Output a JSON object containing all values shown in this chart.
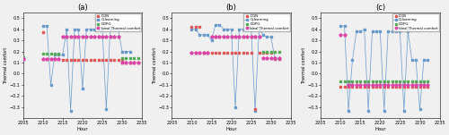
{
  "hours": [
    2205,
    2206,
    2207,
    2208,
    2209,
    2210,
    2211,
    2212,
    2213,
    2214,
    2215,
    2216,
    2217,
    2218,
    2219,
    2220,
    2221,
    2222,
    2223,
    2224,
    2225,
    2226,
    2227,
    2228,
    2229,
    2230,
    2231,
    2232,
    2233,
    2234,
    2235
  ],
  "subplot_a": {
    "title": "(a)",
    "DQN_x": [
      2205,
      2210,
      2211,
      2212,
      2213,
      2214,
      2215,
      2216,
      2217,
      2218,
      2219,
      2220,
      2221,
      2222,
      2223,
      2224,
      2225,
      2226,
      2227,
      2228,
      2229,
      2230,
      2231,
      2232,
      2233,
      2234
    ],
    "DQN_y": [
      0.13,
      0.37,
      0.13,
      0.13,
      0.13,
      0.13,
      0.12,
      0.12,
      0.12,
      0.12,
      0.12,
      0.12,
      0.12,
      0.12,
      0.12,
      0.12,
      0.12,
      0.12,
      0.12,
      0.12,
      0.12,
      0.12,
      0.1,
      0.1,
      0.1,
      0.1
    ],
    "Qlearning_x": [
      2210,
      2211,
      2212,
      2213,
      2214,
      2215,
      2216,
      2217,
      2218,
      2219,
      2220,
      2221,
      2222,
      2223,
      2224,
      2225,
      2226,
      2227,
      2228,
      2229,
      2230,
      2231,
      2232
    ],
    "Qlearning_y": [
      0.43,
      0.43,
      -0.1,
      0.17,
      0.17,
      0.17,
      0.4,
      -0.33,
      0.4,
      0.4,
      -0.13,
      0.4,
      0.4,
      0.4,
      0.4,
      0.4,
      -0.32,
      0.4,
      0.4,
      0.4,
      0.2,
      0.2,
      0.2
    ],
    "DDPG_x": [
      2205,
      2210,
      2211,
      2212,
      2213,
      2214,
      2215,
      2216,
      2217,
      2218,
      2219,
      2220,
      2221,
      2222,
      2223,
      2224,
      2225,
      2226,
      2227,
      2228,
      2229,
      2230,
      2231,
      2232,
      2233,
      2234
    ],
    "DDPG_y": [
      0.15,
      0.18,
      0.18,
      0.18,
      0.18,
      0.18,
      0.33,
      0.33,
      0.33,
      0.33,
      0.33,
      0.33,
      0.33,
      0.33,
      0.33,
      0.33,
      0.33,
      0.33,
      0.33,
      0.33,
      0.33,
      0.14,
      0.14,
      0.14,
      0.14,
      0.14
    ],
    "Ideal_x": [
      2205,
      2210,
      2211,
      2212,
      2213,
      2214,
      2215,
      2216,
      2217,
      2218,
      2219,
      2220,
      2221,
      2222,
      2223,
      2224,
      2225,
      2226,
      2227,
      2228,
      2229,
      2230,
      2231,
      2232,
      2233,
      2234
    ],
    "Ideal_y": [
      0.13,
      0.13,
      0.13,
      0.13,
      0.13,
      0.13,
      0.33,
      0.33,
      0.33,
      0.33,
      0.33,
      0.33,
      0.33,
      0.33,
      0.33,
      0.33,
      0.33,
      0.33,
      0.33,
      0.33,
      0.33,
      0.1,
      0.1,
      0.1,
      0.1,
      0.1
    ]
  },
  "subplot_b": {
    "title": "(b)",
    "DQN_x": [
      2210,
      2211,
      2212,
      2213,
      2214,
      2215,
      2216,
      2217,
      2218,
      2219,
      2220,
      2221,
      2222,
      2223,
      2224,
      2225,
      2226,
      2227,
      2228,
      2229,
      2230,
      2231,
      2232
    ],
    "DQN_y": [
      0.42,
      0.42,
      0.42,
      0.19,
      0.19,
      0.19,
      0.19,
      0.19,
      0.19,
      0.19,
      0.19,
      0.19,
      0.19,
      0.19,
      0.19,
      0.19,
      -0.32,
      0.19,
      0.19,
      0.19,
      0.19,
      0.13,
      0.13
    ],
    "Qlearning_x": [
      2210,
      2211,
      2212,
      2213,
      2214,
      2215,
      2216,
      2217,
      2218,
      2219,
      2220,
      2221,
      2222,
      2223,
      2224,
      2225,
      2226,
      2227,
      2228,
      2229,
      2230,
      2231,
      2232
    ],
    "Qlearning_y": [
      0.4,
      0.4,
      0.35,
      0.35,
      0.35,
      0.3,
      0.44,
      0.44,
      0.4,
      0.4,
      0.4,
      -0.3,
      0.4,
      0.4,
      0.4,
      0.4,
      -0.33,
      0.4,
      0.35,
      0.33,
      0.33,
      0.13,
      0.13
    ],
    "DDPG_x": [
      2210,
      2211,
      2212,
      2213,
      2214,
      2215,
      2216,
      2217,
      2218,
      2219,
      2220,
      2221,
      2222,
      2223,
      2224,
      2225,
      2226,
      2227,
      2228,
      2229,
      2230,
      2231,
      2232
    ],
    "DDPG_y": [
      0.19,
      0.19,
      0.19,
      0.19,
      0.19,
      0.33,
      0.33,
      0.33,
      0.33,
      0.33,
      0.33,
      0.33,
      0.33,
      0.33,
      0.33,
      0.33,
      0.33,
      0.33,
      0.2,
      0.2,
      0.2,
      0.2,
      0.2
    ],
    "Ideal_x": [
      2210,
      2211,
      2212,
      2213,
      2214,
      2215,
      2216,
      2217,
      2218,
      2219,
      2220,
      2221,
      2222,
      2223,
      2224,
      2225,
      2226,
      2227,
      2228,
      2229,
      2230,
      2231,
      2232
    ],
    "Ideal_y": [
      0.19,
      0.19,
      0.19,
      0.19,
      0.19,
      0.33,
      0.33,
      0.33,
      0.33,
      0.33,
      0.33,
      0.33,
      0.33,
      0.33,
      0.33,
      0.33,
      0.33,
      0.33,
      0.14,
      0.14,
      0.14,
      0.14,
      0.14
    ]
  },
  "subplot_c": {
    "title": "(c)",
    "DQN_x": [
      2210,
      2211,
      2212,
      2213,
      2214,
      2215,
      2216,
      2217,
      2218,
      2219,
      2220,
      2221,
      2222,
      2223,
      2224,
      2225,
      2226,
      2227,
      2228,
      2229,
      2230,
      2231,
      2232
    ],
    "DQN_y": [
      -0.12,
      -0.12,
      -0.12,
      -0.12,
      -0.12,
      -0.12,
      -0.12,
      -0.12,
      -0.12,
      -0.12,
      -0.12,
      -0.12,
      -0.12,
      -0.12,
      -0.12,
      -0.12,
      -0.12,
      -0.12,
      -0.12,
      -0.12,
      -0.12,
      -0.12,
      -0.12
    ],
    "Qlearning_x": [
      2210,
      2211,
      2212,
      2213,
      2214,
      2215,
      2216,
      2217,
      2218,
      2219,
      2220,
      2221,
      2222,
      2223,
      2224,
      2225,
      2226,
      2227,
      2228,
      2229,
      2230,
      2231,
      2232
    ],
    "Qlearning_y": [
      0.43,
      0.43,
      -0.33,
      0.12,
      0.38,
      0.38,
      0.4,
      -0.33,
      0.38,
      0.38,
      0.38,
      -0.33,
      0.38,
      0.38,
      0.38,
      0.38,
      -0.33,
      0.38,
      0.12,
      0.12,
      -0.32,
      0.12,
      0.12
    ],
    "DDPG_x": [
      2210,
      2211,
      2212,
      2213,
      2214,
      2215,
      2216,
      2217,
      2218,
      2219,
      2220,
      2221,
      2222,
      2223,
      2224,
      2225,
      2226,
      2227,
      2228,
      2229,
      2230,
      2231,
      2232
    ],
    "DDPG_y": [
      -0.07,
      -0.07,
      -0.07,
      -0.07,
      -0.07,
      -0.07,
      -0.07,
      -0.07,
      -0.07,
      -0.07,
      -0.07,
      -0.07,
      -0.07,
      -0.07,
      -0.07,
      -0.07,
      -0.07,
      -0.07,
      -0.07,
      -0.07,
      -0.07,
      -0.07,
      -0.07
    ],
    "Ideal_x": [
      2210,
      2211,
      2212,
      2213,
      2214,
      2215,
      2216,
      2217,
      2218,
      2219,
      2220,
      2221,
      2222,
      2223,
      2224,
      2225,
      2226,
      2227,
      2228,
      2229,
      2230,
      2231,
      2232
    ],
    "Ideal_y": [
      0.35,
      0.35,
      -0.1,
      -0.1,
      -0.1,
      -0.1,
      -0.1,
      -0.1,
      -0.1,
      -0.1,
      -0.1,
      -0.1,
      -0.1,
      -0.1,
      -0.1,
      -0.1,
      -0.1,
      -0.1,
      -0.1,
      -0.1,
      -0.1,
      -0.1,
      -0.1
    ]
  },
  "colors": {
    "DQN": "#e05555",
    "Qlearning": "#6699cc",
    "DDPG": "#55aa55",
    "Ideal": "#dd44aa"
  },
  "xlim": [
    2205,
    2235
  ],
  "xticks": [
    2205,
    2210,
    2215,
    2220,
    2225,
    2230,
    2235
  ],
  "ylim": [
    -0.4,
    0.55
  ],
  "yticks": [
    -0.3,
    -0.2,
    -0.1,
    0.0,
    0.1,
    0.2,
    0.3,
    0.4,
    0.5
  ],
  "ylabel": "Thermal comfort",
  "xlabel": "Hour",
  "background_color": "#f0f0f0"
}
